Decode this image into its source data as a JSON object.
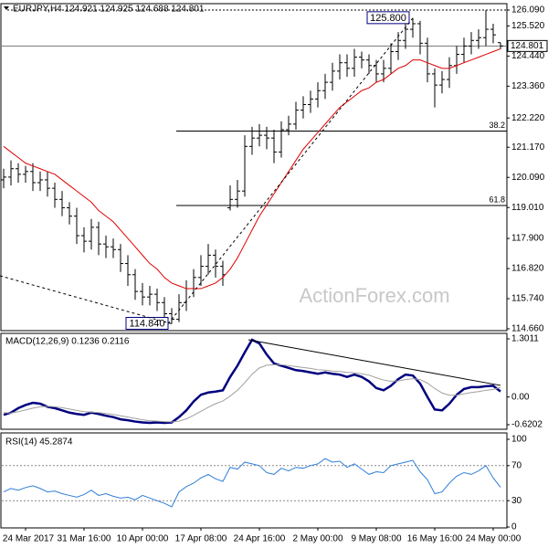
{
  "chart_data": [
    {
      "type": "ohlc",
      "title": "EURJPY,H4 124.921 124.925 124.688 124.801",
      "color": "#000000",
      "open": [
        120.0,
        120.1,
        120.4,
        120.2,
        120.3,
        119.9,
        120.0,
        119.7,
        119.3,
        119.0,
        118.7,
        118.0,
        117.8,
        118.3,
        117.7,
        117.6,
        117.5,
        117.0,
        116.6,
        116.0,
        115.8,
        115.9,
        115.6,
        115.2,
        115.0,
        115.6,
        116.1,
        116.5,
        116.9,
        117.3,
        116.9,
        119.0,
        119.3,
        119.6,
        121.2,
        121.5,
        121.6,
        121.5,
        121.0,
        121.8,
        122.0,
        122.5,
        122.7,
        122.9,
        123.2,
        123.5,
        123.9,
        124.2,
        124.0,
        124.4,
        124.3,
        124.1,
        123.8,
        124.0,
        124.6,
        125.0,
        125.4,
        125.6,
        124.9,
        123.8,
        123.4,
        123.6,
        124.1,
        124.5,
        124.8,
        125.0,
        125.1,
        125.4,
        124.921
      ],
      "high": [
        120.4,
        120.7,
        120.6,
        120.5,
        120.6,
        120.3,
        120.3,
        119.9,
        119.6,
        119.2,
        119.0,
        118.3,
        118.6,
        118.5,
        118.0,
        117.9,
        117.7,
        117.3,
        116.8,
        116.3,
        116.2,
        116.1,
        115.8,
        115.4,
        115.9,
        116.4,
        116.8,
        117.3,
        117.7,
        117.5,
        117.1,
        119.8,
        120.0,
        121.6,
        121.9,
        122.0,
        121.9,
        121.8,
        122.1,
        122.3,
        122.8,
        123.0,
        123.2,
        123.5,
        123.8,
        124.2,
        124.5,
        124.5,
        124.7,
        124.6,
        124.5,
        124.3,
        124.3,
        124.9,
        125.3,
        125.6,
        125.8,
        125.7,
        125.1,
        124.0,
        123.9,
        124.4,
        124.8,
        125.1,
        125.3,
        125.4,
        126.09,
        125.6,
        124.925
      ],
      "low": [
        119.7,
        119.8,
        119.9,
        119.9,
        119.6,
        119.6,
        119.4,
        119.0,
        118.7,
        118.4,
        117.7,
        117.4,
        117.5,
        117.3,
        117.2,
        117.2,
        116.7,
        116.2,
        115.7,
        115.5,
        115.5,
        115.3,
        114.9,
        114.84,
        114.9,
        115.3,
        115.8,
        116.2,
        116.6,
        116.5,
        116.2,
        118.9,
        119.0,
        119.4,
        120.9,
        121.2,
        121.1,
        120.6,
        120.8,
        121.6,
        121.8,
        122.2,
        122.4,
        122.6,
        122.9,
        123.2,
        123.6,
        123.7,
        123.7,
        124.0,
        123.8,
        123.5,
        123.5,
        123.8,
        124.3,
        124.7,
        125.1,
        124.5,
        123.5,
        122.6,
        123.1,
        123.3,
        123.8,
        124.2,
        124.5,
        124.7,
        124.8,
        124.9,
        124.688
      ],
      "close": [
        120.1,
        120.4,
        120.2,
        120.3,
        119.9,
        120.0,
        119.7,
        119.3,
        119.0,
        118.7,
        118.0,
        117.8,
        118.3,
        117.7,
        117.6,
        117.5,
        117.0,
        116.6,
        116.0,
        115.8,
        115.9,
        115.6,
        115.2,
        115.0,
        115.6,
        116.1,
        116.5,
        116.9,
        117.3,
        116.9,
        116.6,
        119.3,
        119.6,
        121.2,
        121.5,
        121.6,
        121.5,
        121.0,
        121.8,
        122.0,
        122.5,
        122.7,
        122.9,
        123.2,
        123.5,
        123.9,
        124.2,
        124.0,
        124.4,
        124.3,
        124.1,
        123.8,
        124.0,
        124.6,
        125.0,
        125.4,
        125.6,
        124.9,
        123.8,
        123.4,
        123.6,
        124.1,
        124.5,
        124.8,
        125.0,
        125.1,
        125.4,
        125.2,
        124.801
      ],
      "overlay": {
        "color": "#e00000",
        "values": [
          121.2,
          121.0,
          120.8,
          120.6,
          120.5,
          120.4,
          120.3,
          120.2,
          120.0,
          119.8,
          119.6,
          119.4,
          119.2,
          118.9,
          118.7,
          118.5,
          118.2,
          117.9,
          117.6,
          117.3,
          117.0,
          116.8,
          116.5,
          116.3,
          116.2,
          116.1,
          116.1,
          116.1,
          116.2,
          116.3,
          116.5,
          116.8,
          117.2,
          117.7,
          118.2,
          118.7,
          119.1,
          119.5,
          119.9,
          120.3,
          120.7,
          121.1,
          121.4,
          121.7,
          122.0,
          122.3,
          122.6,
          122.8,
          123.0,
          123.2,
          123.3,
          123.5,
          123.6,
          123.8,
          124.0,
          124.1,
          124.3,
          124.3,
          124.2,
          124.1,
          124.0,
          124.0,
          124.1,
          124.2,
          124.3,
          124.4,
          124.5,
          124.6,
          124.7
        ]
      },
      "ylim": [
        114.66,
        126.09
      ],
      "yticks": [
        {
          "value": 126.09,
          "label": "126.090"
        },
        {
          "value": 125.52,
          "label": "125.520"
        },
        {
          "value": 124.44,
          "label": "124.440"
        },
        {
          "value": 123.36,
          "label": "123.360"
        },
        {
          "value": 122.22,
          "label": "122.220"
        },
        {
          "value": 121.17,
          "label": "121.170"
        },
        {
          "value": 120.09,
          "label": "120.090"
        },
        {
          "value": 119.01,
          "label": "119.010"
        },
        {
          "value": 117.9,
          "label": "117.900"
        },
        {
          "value": 116.82,
          "label": "116.820"
        },
        {
          "value": 115.74,
          "label": "115.740"
        },
        {
          "value": 114.66,
          "label": "114.660"
        }
      ],
      "current": {
        "value": 124.801,
        "label": "124.801"
      },
      "extremes": [
        {
          "value": 125.8,
          "label": "125.800"
        },
        {
          "value": 114.84,
          "label": "114.840"
        }
      ],
      "fib_levels": [
        {
          "value": 121.75,
          "label": "38.2"
        },
        {
          "value": 119.08,
          "label": "61.8"
        }
      ],
      "trendlines": [
        [
          [
            0,
            116.56
          ],
          [
            23,
            114.84
          ]
        ],
        [
          [
            23,
            114.84
          ],
          [
            56,
            125.8
          ]
        ]
      ],
      "trendline_dashed": true,
      "watermark": "ActionForex.com"
    },
    {
      "type": "line",
      "title": "MACD(12,26,9) 0.1236 0.2116",
      "series": [
        {
          "color": "#00007f",
          "width": 2.5,
          "values": [
            -0.4,
            -0.35,
            -0.25,
            -0.18,
            -0.13,
            -0.15,
            -0.22,
            -0.25,
            -0.3,
            -0.35,
            -0.38,
            -0.4,
            -0.35,
            -0.38,
            -0.42,
            -0.45,
            -0.5,
            -0.52,
            -0.55,
            -0.57,
            -0.58,
            -0.57,
            -0.58,
            -0.57,
            -0.45,
            -0.3,
            -0.1,
            0.05,
            0.1,
            0.12,
            0.15,
            0.45,
            0.7,
            1.0,
            1.28,
            1.2,
            0.95,
            0.75,
            0.7,
            0.65,
            0.6,
            0.58,
            0.55,
            0.52,
            0.55,
            0.52,
            0.5,
            0.45,
            0.5,
            0.45,
            0.35,
            0.2,
            0.15,
            0.25,
            0.4,
            0.5,
            0.48,
            0.3,
            0.0,
            -0.28,
            -0.3,
            -0.15,
            0.05,
            0.18,
            0.22,
            0.22,
            0.24,
            0.25,
            0.1236
          ]
        },
        {
          "color": "#a0a0a0",
          "width": 1,
          "values": [
            -0.35,
            -0.36,
            -0.33,
            -0.29,
            -0.25,
            -0.22,
            -0.21,
            -0.22,
            -0.24,
            -0.27,
            -0.3,
            -0.33,
            -0.34,
            -0.35,
            -0.37,
            -0.39,
            -0.42,
            -0.45,
            -0.48,
            -0.51,
            -0.53,
            -0.54,
            -0.55,
            -0.56,
            -0.54,
            -0.49,
            -0.41,
            -0.32,
            -0.23,
            -0.15,
            -0.09,
            0.02,
            0.15,
            0.32,
            0.51,
            0.65,
            0.71,
            0.72,
            0.72,
            0.7,
            0.68,
            0.66,
            0.64,
            0.61,
            0.6,
            0.58,
            0.57,
            0.55,
            0.54,
            0.52,
            0.49,
            0.43,
            0.38,
            0.35,
            0.36,
            0.39,
            0.41,
            0.39,
            0.31,
            0.19,
            0.09,
            0.04,
            0.04,
            0.07,
            0.1,
            0.12,
            0.15,
            0.17,
            0.2116
          ]
        }
      ],
      "ylim": [
        -0.6202,
        1.3011
      ],
      "yticks": [
        1.3011,
        {
          "value": 0,
          "label": "0.00"
        },
        -0.6202
      ],
      "grid": false,
      "trendlines": [
        [
          [
            34,
            1.28
          ],
          [
            68,
            0.26
          ]
        ]
      ],
      "trendline_dashed": false
    },
    {
      "type": "line",
      "title": "RSI(14) 45.2874",
      "categories": [
        null,
        null,
        null,
        "24 Mar 2017",
        null,
        null,
        null,
        null,
        null,
        null,
        null,
        "31 Mar 16:00",
        null,
        null,
        null,
        null,
        null,
        null,
        null,
        "10 Apr 00:00",
        null,
        null,
        null,
        null,
        null,
        null,
        null,
        "17 Apr 08:00",
        null,
        null,
        null,
        null,
        null,
        null,
        null,
        "24 Apr 16:00",
        null,
        null,
        null,
        null,
        null,
        null,
        null,
        "2 May 00:00",
        null,
        null,
        null,
        null,
        null,
        null,
        null,
        "9 May 08:00",
        null,
        null,
        null,
        null,
        null,
        null,
        null,
        "16 May 16:00",
        null,
        null,
        null,
        null,
        null,
        null,
        null,
        "24 May 00:00",
        null
      ],
      "series": [
        {
          "color": "#2f7fd8",
          "width": 1,
          "values": [
            40,
            44,
            42,
            45,
            47,
            44,
            40,
            41,
            38,
            36,
            34,
            37,
            42,
            36,
            38,
            35,
            33,
            34,
            31,
            36,
            33,
            30,
            27,
            23,
            40,
            46,
            50,
            56,
            60,
            55,
            52,
            68,
            66,
            74,
            72,
            70,
            62,
            60,
            67,
            64,
            68,
            67,
            70,
            72,
            78,
            74,
            75,
            68,
            72,
            66,
            60,
            63,
            62,
            70,
            72,
            74,
            76,
            63,
            54,
            38,
            40,
            50,
            58,
            62,
            60,
            64,
            70,
            56,
            45.2874
          ]
        }
      ],
      "ylim": [
        0,
        100
      ],
      "yticks": [
        100,
        70,
        30,
        0
      ],
      "grid": true
    }
  ]
}
